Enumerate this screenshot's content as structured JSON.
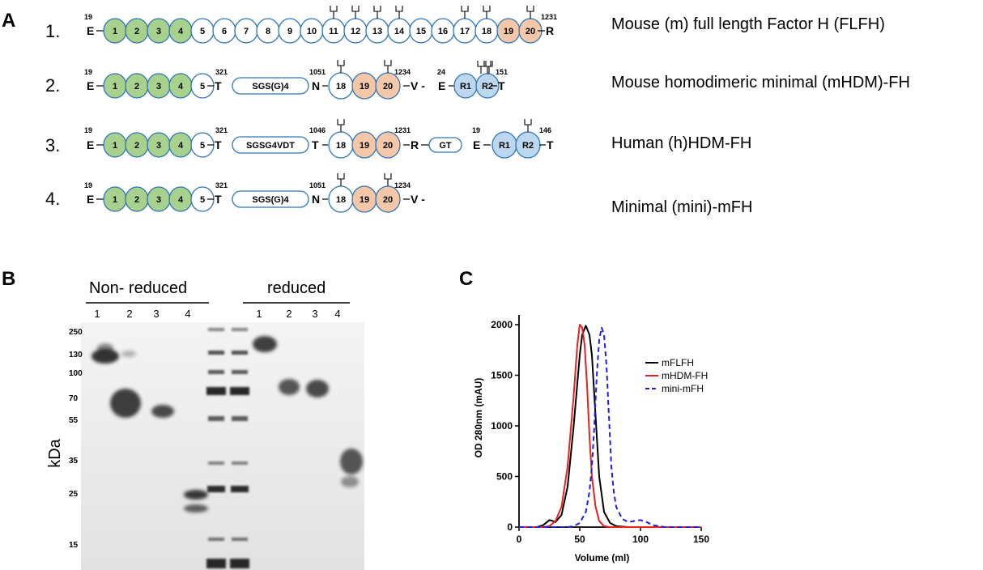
{
  "panel_a": {
    "letter": "A",
    "constructs": [
      {
        "number": "1.",
        "description": "Mouse (m) full length Factor H (FLFH)",
        "start_num": "19",
        "start_res": "E",
        "end_num": "1231",
        "end_res": "R",
        "domains": [
          "1",
          "2",
          "3",
          "4",
          "5",
          "6",
          "7",
          "8",
          "9",
          "10",
          "11",
          "12",
          "13",
          "14",
          "15",
          "16",
          "17",
          "18",
          "19",
          "20"
        ],
        "glycosylated": [
          "11",
          "12",
          "13",
          "14",
          "17",
          "18",
          "20"
        ]
      },
      {
        "number": "2.",
        "description": "Mouse homodimeric minimal (mHDM)-FH",
        "start_num": "19",
        "start_res": "E",
        "segment1_end_num": "321",
        "segment1_end_res": "T",
        "linker": "SGS(G)4",
        "segment2_start_num": "1051",
        "segment2_start_res": "N",
        "segment2_end_num": "1234",
        "segment2_end_res": "V -",
        "segment3_start_num": "24",
        "segment3_start_res": "E",
        "segment3_end_num": "151",
        "segment3_end_res": "T",
        "domains_n": [
          "1",
          "2",
          "3",
          "4",
          "5"
        ],
        "domains_c": [
          "18",
          "19",
          "20"
        ],
        "domains_dimer": [
          "R1",
          "R2"
        ]
      },
      {
        "number": "3.",
        "description": "Human (h)HDM-FH",
        "start_num": "19",
        "start_res": "E",
        "segment1_end_num": "321",
        "segment1_end_res": "T",
        "linker": "SGSG4VDT",
        "segment2_start_num": "1046",
        "segment2_start_res": "T",
        "segment2_end_num": "1231",
        "segment2_end_res": "R",
        "gt_linker": "GT",
        "segment3_start_num": "19",
        "segment3_start_res": "E",
        "segment3_end_num": "146",
        "segment3_end_res": "T",
        "domains_n": [
          "1",
          "2",
          "3",
          "4",
          "5"
        ],
        "domains_c": [
          "18",
          "19",
          "20"
        ],
        "domains_dimer": [
          "R1",
          "R2"
        ]
      },
      {
        "number": "4.",
        "description": "Minimal (mini)-mFH",
        "start_num": "19",
        "start_res": "E",
        "segment1_end_num": "321",
        "segment1_end_res": "T",
        "linker": "SGS(G)4",
        "segment2_start_num": "1051",
        "segment2_start_res": "N",
        "segment2_end_num": "1234",
        "segment2_end_res": "V -",
        "domains_n": [
          "1",
          "2",
          "3",
          "4",
          "5"
        ],
        "domains_c": [
          "18",
          "19",
          "20"
        ]
      }
    ],
    "colors": {
      "green": "#a9d18e",
      "orange": "#f4c7a9",
      "blue": "#bdd7ee",
      "outline": "#2e75b6"
    }
  },
  "panel_b": {
    "letter": "B",
    "group_nonreduced": "Non- reduced",
    "group_reduced": "reduced",
    "lanes_nonreduced": [
      "1",
      "2",
      "3",
      "4"
    ],
    "lanes_reduced": [
      "1",
      "2",
      "3",
      "4"
    ],
    "y_label": "kDa",
    "mw_markers": [
      "250",
      "130",
      "100",
      "70",
      "55",
      "35",
      "25",
      "15"
    ]
  },
  "panel_c": {
    "letter": "C"
  },
  "chart_data": {
    "type": "line",
    "xlabel": "Volume (ml)",
    "ylabel": "OD 280nm (mAU)",
    "xlim": [
      0,
      150
    ],
    "ylim": [
      0,
      2000
    ],
    "xticks": [
      "0",
      "50",
      "100",
      "150"
    ],
    "yticks": [
      "0",
      "500",
      "1000",
      "1500",
      "2000"
    ],
    "legend_position": "right",
    "series": [
      {
        "name": "mFLFH",
        "color": "#000000",
        "dash": "solid",
        "x": [
          0,
          15,
          20,
          25,
          28,
          30,
          35,
          40,
          45,
          50,
          52,
          55,
          58,
          60,
          63,
          66,
          70,
          75,
          80,
          90,
          100,
          150
        ],
        "y": [
          0,
          0,
          20,
          70,
          60,
          50,
          120,
          400,
          1000,
          1700,
          1900,
          1990,
          1900,
          1700,
          1100,
          500,
          150,
          40,
          10,
          0,
          0,
          0
        ]
      },
      {
        "name": "mHDM-FH",
        "color": "#e8211d",
        "dash": "solid",
        "x": [
          0,
          20,
          25,
          30,
          35,
          40,
          45,
          48,
          50,
          52,
          54,
          56,
          58,
          60,
          63,
          66,
          70,
          75,
          80,
          150
        ],
        "y": [
          0,
          0,
          10,
          60,
          200,
          600,
          1300,
          1800,
          2000,
          1970,
          1800,
          1400,
          900,
          500,
          200,
          60,
          10,
          0,
          0,
          0
        ]
      },
      {
        "name": "mini-mFH",
        "color": "#1f1fe0",
        "dash": "dashed",
        "x": [
          0,
          30,
          40,
          45,
          50,
          55,
          58,
          60,
          62,
          64,
          66,
          68,
          70,
          72,
          74,
          76,
          78,
          80,
          85,
          90,
          95,
          100,
          105,
          110,
          120,
          150
        ],
        "y": [
          0,
          0,
          0,
          10,
          40,
          150,
          350,
          600,
          1000,
          1500,
          1850,
          1970,
          1900,
          1600,
          1100,
          600,
          350,
          200,
          80,
          50,
          60,
          70,
          50,
          20,
          0,
          0
        ]
      }
    ]
  }
}
